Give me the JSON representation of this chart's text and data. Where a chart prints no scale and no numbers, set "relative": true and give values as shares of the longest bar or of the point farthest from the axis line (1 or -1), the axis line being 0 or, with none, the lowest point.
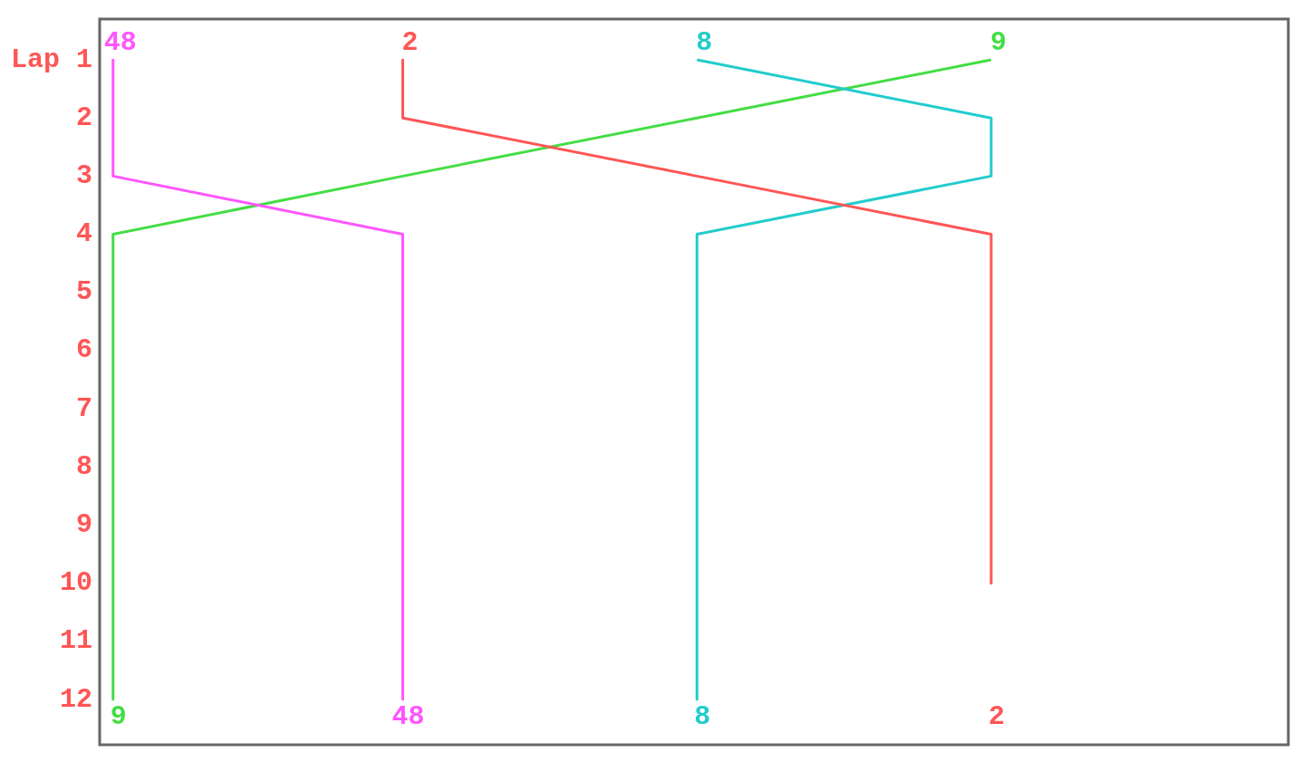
{
  "chart_data": {
    "type": "line",
    "orientation": "horizontal",
    "relative": true,
    "categories": [
      "Lap 1",
      "2",
      "3",
      "4",
      "5",
      "6",
      "7",
      "8",
      "9",
      "10",
      "11",
      "12"
    ],
    "grid": false,
    "legend": false,
    "marker": "none",
    "line_style": "solid",
    "series": [
      {
        "name": "48",
        "color": "#ff55ff",
        "values": [
          0.015,
          0.015,
          0.015,
          0.34,
          0.34,
          0.34,
          0.34,
          0.34,
          0.34,
          0.34,
          0.34,
          0.34
        ]
      },
      {
        "name": "2",
        "color": "#ff5555",
        "values": [
          0.34,
          0.34,
          0.67,
          1,
          1,
          1,
          1,
          1,
          1,
          1,
          null,
          null
        ]
      },
      {
        "name": "8",
        "color": "#22cccc",
        "values": [
          0.67,
          1,
          1,
          0.67,
          0.67,
          0.67,
          0.67,
          0.67,
          0.67,
          0.67,
          0.67,
          0.67
        ]
      },
      {
        "name": "9",
        "color": "#44dd44",
        "values": [
          1,
          0.67,
          0.34,
          0.015,
          0.015,
          0.015,
          0.015,
          0.015,
          0.015,
          0.015,
          0.015,
          0.015
        ]
      }
    ]
  }
}
